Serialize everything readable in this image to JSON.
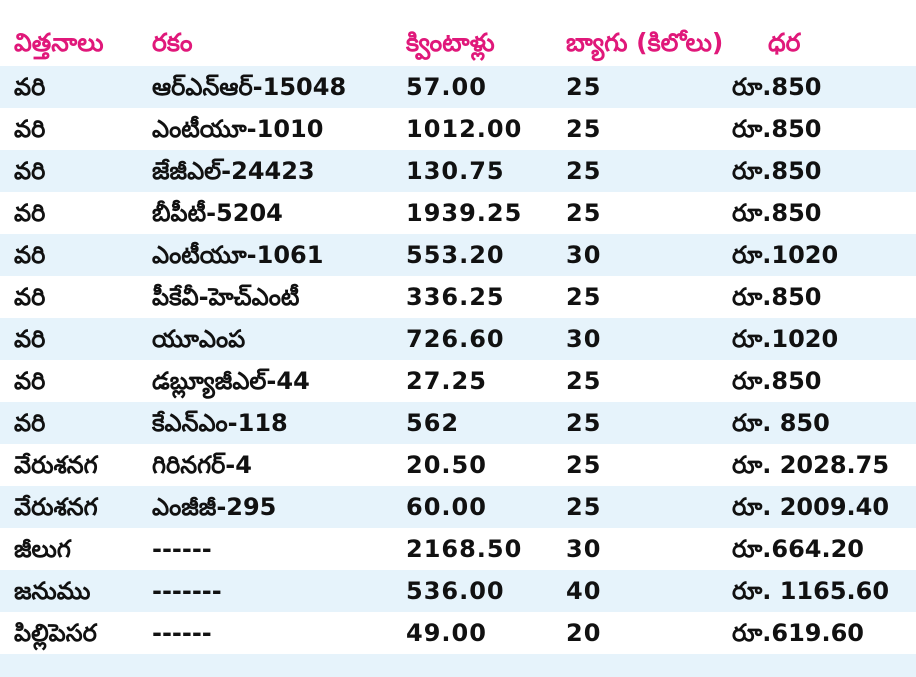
{
  "headers": {
    "seed": "విత్తనాలు",
    "variety": "రకం",
    "quintals": "క్వింటాళ్లు",
    "bags": "బ్యాగు (కిలోలు)",
    "price": "ధర"
  },
  "rows": [
    {
      "seed": "వరి",
      "variety": "ఆర్ఎన్ఆర్-15048",
      "quintals": "57.00",
      "bags": "25",
      "price": "రూ.850"
    },
    {
      "seed": "వరి",
      "variety": "ఎంటీయూ-1010",
      "quintals": "1012.00",
      "bags": "25",
      "price": "రూ.850"
    },
    {
      "seed": "వరి",
      "variety": "జేజీఎల్-24423",
      "quintals": "130.75",
      "bags": "25",
      "price": "రూ.850"
    },
    {
      "seed": "వరి",
      "variety": "బీపీటీ-5204",
      "quintals": "1939.25",
      "bags": "25",
      "price": "రూ.850"
    },
    {
      "seed": "వరి",
      "variety": "ఎంటీయూ-1061",
      "quintals": "553.20",
      "bags": "30",
      "price": "రూ.1020"
    },
    {
      "seed": "వరి",
      "variety": "పీకేవీ-హెచ్ఎంటీ",
      "quintals": "336.25",
      "bags": "25",
      "price": "రూ.850"
    },
    {
      "seed": "వరి",
      "variety": "యూఎంప",
      "quintals": "726.60",
      "bags": "30",
      "price": "రూ.1020"
    },
    {
      "seed": "వరి",
      "variety": "డబ్ల్యూజీఎల్-44",
      "quintals": "27.25",
      "bags": "25",
      "price": "రూ.850"
    },
    {
      "seed": "వరి",
      "variety": "కేఎన్ఎం-118",
      "quintals": "562",
      "bags": "25",
      "price": "రూ. 850"
    },
    {
      "seed": "వేరుశనగ",
      "variety": "గిరినగర్-4",
      "quintals": "20.50",
      "bags": "25",
      "price": "రూ. 2028.75"
    },
    {
      "seed": "వేరుశనగ",
      "variety": "ఎంజీజీ-295",
      "quintals": "60.00",
      "bags": "25",
      "price": "రూ. 2009.40"
    },
    {
      "seed": "జీలుగ",
      "variety": "------",
      "quintals": "2168.50",
      "bags": "30",
      "price": "రూ.664.20"
    },
    {
      "seed": "జనుము",
      "variety": "-------",
      "quintals": "536.00",
      "bags": "40",
      "price": "రూ. 1165.60"
    },
    {
      "seed": "పిల్లిపెసర",
      "variety": "------",
      "quintals": "49.00",
      "bags": "20",
      "price": "రూ.619.60"
    }
  ],
  "colors": {
    "header_text": "#e0187a",
    "body_text": "#111111",
    "stripe": "#e6f3fb"
  }
}
